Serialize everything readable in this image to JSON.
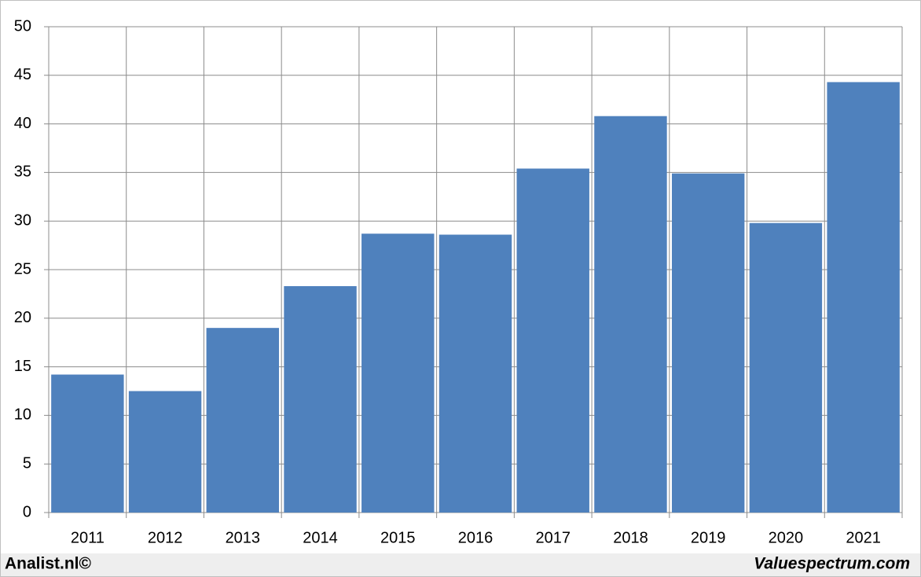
{
  "chart_data": {
    "type": "bar",
    "categories": [
      "2011",
      "2012",
      "2013",
      "2014",
      "2015",
      "2016",
      "2017",
      "2018",
      "2019",
      "2020",
      "2021"
    ],
    "values": [
      14.2,
      12.5,
      19.0,
      23.3,
      28.7,
      28.6,
      35.4,
      40.8,
      34.9,
      29.8,
      44.3
    ],
    "color": "#4f81bd",
    "ylim": [
      0,
      50
    ],
    "yticks": [
      0,
      5,
      10,
      15,
      20,
      25,
      30,
      35,
      40,
      45,
      50
    ],
    "grid": true
  },
  "footer": {
    "left": "Analist.nl©",
    "right": "Valuespectrum.com"
  }
}
